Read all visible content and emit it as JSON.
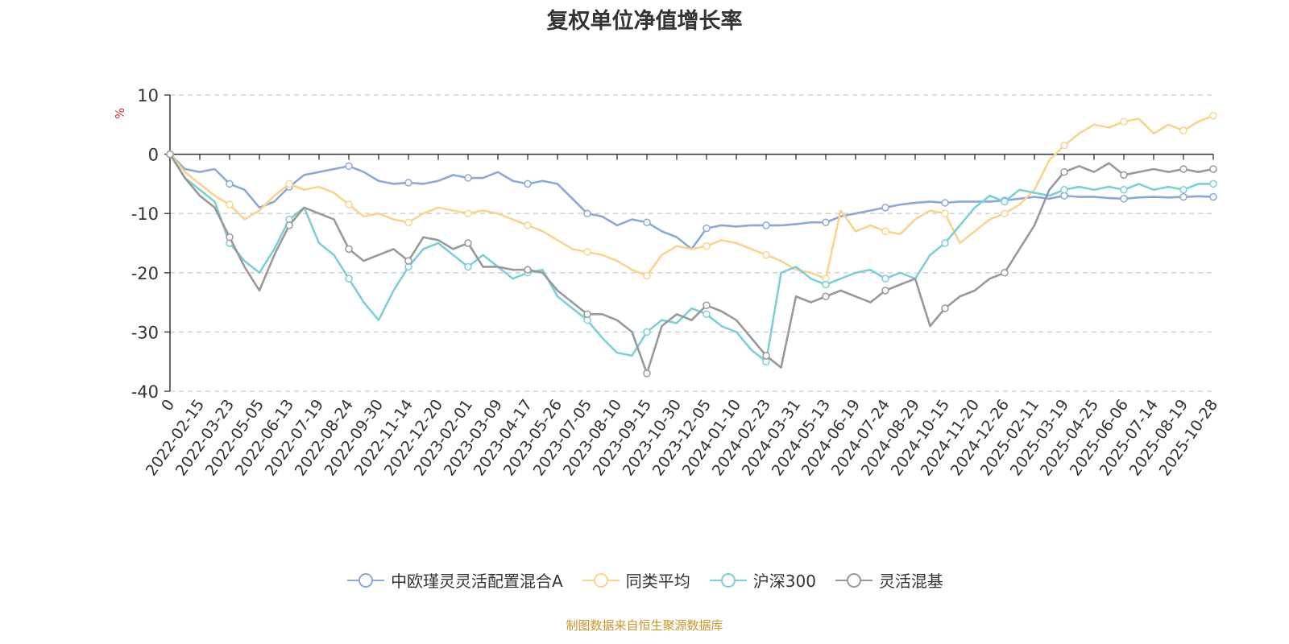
{
  "chart_data": {
    "type": "line",
    "title": "复权单位净值增长率",
    "ylabel": "%",
    "ylim": [
      -40,
      10
    ],
    "yticks": [
      10,
      0,
      -10,
      -20,
      -30,
      -40
    ],
    "x_tick_labels": [
      "0",
      "2022-02-15",
      "2022-03-23",
      "2022-05-05",
      "2022-06-13",
      "2022-07-19",
      "2022-08-24",
      "2022-09-30",
      "2022-11-14",
      "2022-12-20",
      "2023-02-01",
      "2023-03-09",
      "2023-04-17",
      "2023-05-26",
      "2023-07-05",
      "2023-08-10",
      "2023-09-15",
      "2023-10-30",
      "2023-12-05",
      "2024-01-10",
      "2024-02-23",
      "2024-03-31",
      "2024-05-13",
      "2024-06-19",
      "2024-07-24",
      "2024-08-29",
      "2024-10-15",
      "2024-11-20",
      "2024-12-26",
      "2025-02-11",
      "2025-03-19",
      "2025-04-25",
      "2025-06-06",
      "2025-07-14",
      "2025-08-19",
      "2025-10-28"
    ],
    "x": [
      0,
      1,
      2,
      3,
      4,
      5,
      6,
      7,
      8,
      9,
      10,
      11,
      12,
      13,
      14,
      15,
      16,
      17,
      18,
      19,
      20,
      21,
      22,
      23,
      24,
      25,
      26,
      27,
      28,
      29,
      30,
      31,
      32,
      33,
      34,
      35,
      36,
      37,
      38,
      39,
      40,
      41,
      42,
      43,
      44,
      45,
      46,
      47,
      48,
      49,
      50,
      51,
      52,
      53,
      54,
      55,
      56,
      57,
      58,
      59,
      60,
      61,
      62,
      63,
      64,
      65,
      66,
      67,
      68,
      69,
      70
    ],
    "series": [
      {
        "name": "中欧瑾灵灵活配置混合A",
        "color": "#8aa9d6",
        "values": [
          0,
          -2.5,
          -3,
          -2.5,
          -5,
          -6,
          -9,
          -8,
          -5.5,
          -3.5,
          -3,
          -2.5,
          -2,
          -3,
          -4.5,
          -5,
          -4.8,
          -5,
          -4.5,
          -3.5,
          -4,
          -4,
          -3,
          -4.5,
          -5,
          -4.5,
          -5,
          -7.5,
          -10,
          -10.5,
          -12,
          -11,
          -11.5,
          -13,
          -14,
          -16,
          -12.5,
          -12,
          -12.2,
          -12,
          -12,
          -12,
          -11.8,
          -11.5,
          -11.5,
          -10.5,
          -10,
          -9.5,
          -9,
          -8.5,
          -8.2,
          -8,
          -8.2,
          -8,
          -8,
          -8,
          -7.8,
          -7.5,
          -7.2,
          -7.5,
          -7,
          -7.2,
          -7.2,
          -7.4,
          -7.5,
          -7.3,
          -7.2,
          -7.3,
          -7.2,
          -7.1,
          -7.2
        ]
      },
      {
        "name": "同类平均",
        "color": "#fad38c",
        "values": [
          0,
          -3,
          -5,
          -7,
          -8.5,
          -11,
          -9.5,
          -7,
          -5,
          -6,
          -5.5,
          -6.5,
          -8.5,
          -10.5,
          -10,
          -11,
          -11.5,
          -10,
          -9,
          -9.5,
          -10,
          -9.5,
          -10,
          -11,
          -12,
          -13,
          -14.5,
          -16,
          -16.5,
          -17,
          -18,
          -19.5,
          -20.5,
          -17,
          -15.5,
          -16,
          -15.5,
          -14.5,
          -15,
          -16,
          -17,
          -18,
          -19.5,
          -20,
          -21,
          -9.5,
          -13,
          -12,
          -13,
          -13.5,
          -11,
          -9.5,
          -10,
          -15,
          -13,
          -11,
          -10,
          -8.5,
          -6,
          -1,
          1.5,
          3.5,
          5,
          4.5,
          5.5,
          6,
          3.5,
          5,
          4,
          5.5,
          6.5
        ]
      },
      {
        "name": "沪深300",
        "color": "#7bd0d6",
        "values": [
          0,
          -4,
          -6,
          -8,
          -15,
          -18,
          -20,
          -16,
          -11,
          -9,
          -15,
          -17,
          -21,
          -25,
          -28,
          -23,
          -19,
          -16,
          -15,
          -17,
          -19,
          -17,
          -19,
          -21,
          -20,
          -19.5,
          -24,
          -26,
          -28,
          -31,
          -33.5,
          -34,
          -30,
          -28,
          -28.5,
          -26,
          -27,
          -29,
          -30,
          -33,
          -35,
          -20,
          -19,
          -21,
          -22,
          -21,
          -20,
          -19.5,
          -21,
          -20,
          -21,
          -17,
          -15,
          -12,
          -9,
          -7,
          -8,
          -6,
          -6.5,
          -7,
          -6,
          -5.5,
          -6,
          -5.5,
          -6,
          -5,
          -6,
          -5.5,
          -6,
          -5,
          -5
        ]
      },
      {
        "name": "灵活混基",
        "color": "#999999",
        "values": [
          0,
          -4,
          -7,
          -9,
          -14,
          -19,
          -23,
          -17,
          -12,
          -9,
          -10,
          -11,
          -16,
          -18,
          -17,
          -16,
          -18,
          -14,
          -14.5,
          -16,
          -15,
          -19,
          -19,
          -19.5,
          -19.5,
          -20,
          -23,
          -25,
          -27,
          -27,
          -28,
          -30,
          -37,
          -29,
          -27,
          -28,
          -25.5,
          -26.5,
          -28,
          -31,
          -34,
          -36,
          -24,
          -25,
          -24,
          -23,
          -24,
          -25,
          -23,
          -22,
          -21,
          -29,
          -26,
          -24,
          -23,
          -21,
          -20,
          -16,
          -12,
          -6,
          -3,
          -2,
          -3,
          -1.5,
          -3.5,
          -3,
          -2.5,
          -3,
          -2.5,
          -3,
          -2.5
        ]
      }
    ]
  },
  "legend": {
    "items": [
      {
        "label": "中欧瑾灵灵活配置混合A",
        "color": "#8aa9d6"
      },
      {
        "label": "同类平均",
        "color": "#fad38c"
      },
      {
        "label": "沪深300",
        "color": "#7bd0d6"
      },
      {
        "label": "灵活混基",
        "color": "#999999"
      }
    ]
  },
  "source": "制图数据来自恒生聚源数据库"
}
